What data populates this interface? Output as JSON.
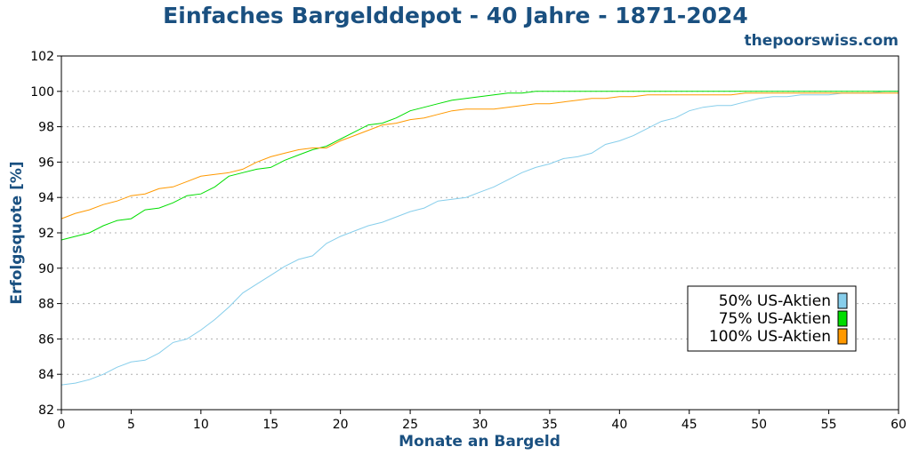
{
  "header": {
    "title": "Einfaches Bargelddepot - 40 Jahre - 1871-2024",
    "site": "thepoorswiss.com"
  },
  "chart_data": {
    "type": "line",
    "xlabel": "Monate an Bargeld",
    "ylabel": "Erfolgsquote [%]",
    "xlim": [
      0,
      60
    ],
    "ylim": [
      82,
      102
    ],
    "xticks": [
      0,
      5,
      10,
      15,
      20,
      25,
      30,
      35,
      40,
      45,
      50,
      55,
      60
    ],
    "yticks": [
      82,
      84,
      86,
      88,
      90,
      92,
      94,
      96,
      98,
      100,
      102
    ],
    "grid": "horizontal-dotted",
    "legend_position": "bottom-right",
    "x": [
      0,
      1,
      2,
      3,
      4,
      5,
      6,
      7,
      8,
      9,
      10,
      11,
      12,
      13,
      14,
      15,
      16,
      17,
      18,
      19,
      20,
      21,
      22,
      23,
      24,
      25,
      26,
      27,
      28,
      29,
      30,
      31,
      32,
      33,
      34,
      35,
      36,
      37,
      38,
      39,
      40,
      41,
      42,
      43,
      44,
      45,
      46,
      47,
      48,
      49,
      50,
      51,
      52,
      53,
      54,
      55,
      56,
      57,
      58,
      59,
      60
    ],
    "series": [
      {
        "name": "50% US-Aktien",
        "color": "#87ceeb",
        "values": [
          83.4,
          83.5,
          83.7,
          84.0,
          84.4,
          84.7,
          84.8,
          85.2,
          85.8,
          86.0,
          86.5,
          87.1,
          87.8,
          88.6,
          89.1,
          89.6,
          90.1,
          90.5,
          90.7,
          91.4,
          91.8,
          92.1,
          92.4,
          92.6,
          92.9,
          93.2,
          93.4,
          93.8,
          93.9,
          94.0,
          94.3,
          94.6,
          95.0,
          95.4,
          95.7,
          95.9,
          96.2,
          96.3,
          96.5,
          97.0,
          97.2,
          97.5,
          97.9,
          98.3,
          98.5,
          98.9,
          99.1,
          99.2,
          99.2,
          99.4,
          99.6,
          99.7,
          99.7,
          99.8,
          99.8,
          99.8,
          99.9,
          99.9,
          99.9,
          100.0,
          100.0
        ]
      },
      {
        "name": "75% US-Aktien",
        "color": "#00dd00",
        "values": [
          91.6,
          91.8,
          92.0,
          92.4,
          92.7,
          92.8,
          93.3,
          93.4,
          93.7,
          94.1,
          94.2,
          94.6,
          95.2,
          95.4,
          95.6,
          95.7,
          96.1,
          96.4,
          96.7,
          96.9,
          97.3,
          97.7,
          98.1,
          98.2,
          98.5,
          98.9,
          99.1,
          99.3,
          99.5,
          99.6,
          99.7,
          99.8,
          99.9,
          99.9,
          100.0,
          100.0,
          100.0,
          100.0,
          100.0,
          100.0,
          100.0,
          100.0,
          100.0,
          100.0,
          100.0,
          100.0,
          100.0,
          100.0,
          100.0,
          100.0,
          100.0,
          100.0,
          100.0,
          100.0,
          100.0,
          100.0,
          100.0,
          100.0,
          100.0,
          100.0,
          100.0
        ]
      },
      {
        "name": "100% US-Aktien",
        "color": "#ff9900",
        "values": [
          92.8,
          93.1,
          93.3,
          93.6,
          93.8,
          94.1,
          94.2,
          94.5,
          94.6,
          94.9,
          95.2,
          95.3,
          95.4,
          95.6,
          96.0,
          96.3,
          96.5,
          96.7,
          96.8,
          96.8,
          97.2,
          97.5,
          97.8,
          98.1,
          98.2,
          98.4,
          98.5,
          98.7,
          98.9,
          99.0,
          99.0,
          99.0,
          99.1,
          99.2,
          99.3,
          99.3,
          99.4,
          99.5,
          99.6,
          99.6,
          99.7,
          99.7,
          99.8,
          99.8,
          99.8,
          99.8,
          99.8,
          99.8,
          99.8,
          99.9,
          99.9,
          99.9,
          99.9,
          99.9,
          99.9,
          99.9,
          99.9,
          99.9,
          99.9,
          99.9,
          99.9
        ]
      }
    ]
  }
}
